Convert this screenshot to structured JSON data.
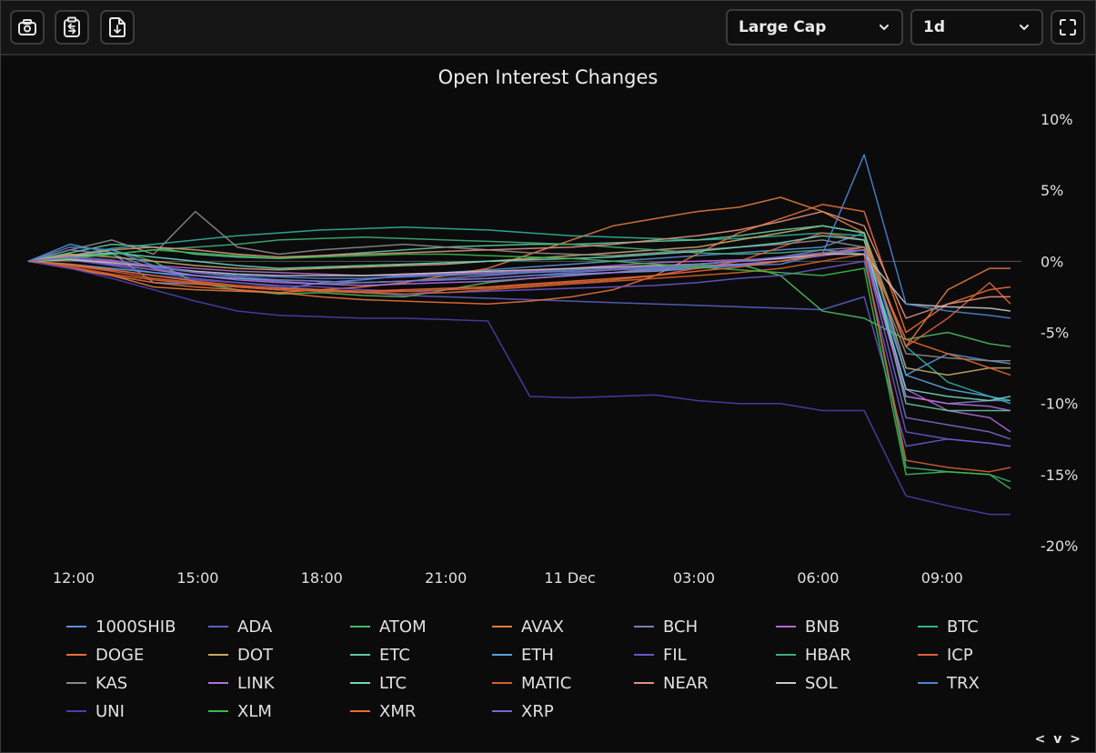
{
  "toolbar": {
    "actions": [
      {
        "name": "camera-icon",
        "label": ""
      },
      {
        "name": "clipboard-icon",
        "label": ""
      },
      {
        "name": "download-icon",
        "label": ""
      }
    ],
    "market_filter": {
      "value": "Large Cap",
      "icon": "chevron-down-icon"
    },
    "timeframe": {
      "value": "1d",
      "icon": "chevron-down-icon"
    },
    "fullscreen_icon": "fullscreen-icon"
  },
  "pager": {
    "label": "< v >"
  },
  "chart_data": {
    "type": "line",
    "title": "Open Interest Changes",
    "x_ticks": [
      "12:00",
      "15:00",
      "18:00",
      "21:00",
      "11 Dec",
      "03:00",
      "06:00",
      "09:00"
    ],
    "y_ticks": [
      "10%",
      "5%",
      "0%",
      "-5%",
      "-10%",
      "-15%",
      "-20%"
    ],
    "ylim": [
      -20,
      10
    ],
    "y_axis_side": "right",
    "x": [
      0,
      1,
      2,
      3,
      4,
      5,
      6,
      7,
      8,
      9,
      10,
      11,
      12,
      13,
      14,
      15,
      16,
      17,
      18,
      19,
      20,
      21,
      22,
      23,
      23.5
    ],
    "legend_position": "bottom",
    "series": [
      {
        "name": "1000SHIB",
        "color": "#5b8fd6",
        "values": [
          0,
          1.2,
          0.6,
          -1.5,
          -1.6,
          -1.8,
          -2.0,
          -1.5,
          -1.3,
          -1.0,
          -0.8,
          -0.6,
          -0.4,
          -0.2,
          0.0,
          0.2,
          0.4,
          0.6,
          0.8,
          1.0,
          2.0,
          -8.0,
          -6.5,
          -7.0,
          -7.2
        ]
      },
      {
        "name": "ADA",
        "color": "#5a5fc4",
        "values": [
          0,
          0.1,
          -0.3,
          -0.8,
          -1.2,
          -1.5,
          -1.8,
          -2.0,
          -2.2,
          -2.4,
          -2.5,
          -2.6,
          -2.7,
          -2.8,
          -2.9,
          -3.0,
          -3.1,
          -3.2,
          -3.3,
          -3.4,
          -2.5,
          -13.0,
          -12.5,
          -12.8,
          -13.0
        ]
      },
      {
        "name": "ATOM",
        "color": "#48b95a",
        "values": [
          0,
          0.3,
          0.8,
          0.0,
          -1.5,
          -2.0,
          -2.3,
          -2.2,
          -2.4,
          -2.5,
          -2.0,
          -1.5,
          -1.2,
          -1.0,
          -0.8,
          -0.5,
          -0.3,
          -0.2,
          -1.0,
          -3.5,
          -4.0,
          -5.5,
          -5.0,
          -5.8,
          -6.0
        ]
      },
      {
        "name": "AVAX",
        "color": "#e07a3c",
        "values": [
          0,
          -0.5,
          -1.0,
          -1.8,
          -2.0,
          -2.1,
          -2.2,
          -2.0,
          -1.8,
          -1.5,
          -1.0,
          -0.5,
          0.5,
          1.5,
          2.5,
          3.0,
          3.5,
          3.8,
          4.5,
          3.5,
          2.0,
          -6.0,
          -2.0,
          -0.5,
          -0.5
        ]
      },
      {
        "name": "BCH",
        "color": "#7a7fb8",
        "values": [
          0,
          0.8,
          0.5,
          -0.5,
          -1.0,
          -1.2,
          -1.4,
          -1.6,
          -1.5,
          -1.4,
          -1.2,
          -1.0,
          -0.8,
          -0.6,
          -0.5,
          -0.4,
          -0.2,
          0.0,
          0.3,
          0.8,
          1.0,
          -9.5,
          -10.0,
          -9.8,
          -9.8
        ]
      },
      {
        "name": "BNB",
        "color": "#b46ad6",
        "values": [
          0,
          0.2,
          0.0,
          -0.3,
          -0.5,
          -0.7,
          -0.8,
          -0.9,
          -1.0,
          -1.0,
          -0.9,
          -0.8,
          -0.7,
          -0.5,
          -0.3,
          -0.1,
          0.0,
          0.1,
          0.2,
          0.5,
          0.8,
          -9.0,
          -10.5,
          -11.0,
          -12.0
        ]
      },
      {
        "name": "BTC",
        "color": "#2fb39a",
        "values": [
          0,
          0.4,
          0.9,
          1.2,
          1.5,
          1.8,
          2.0,
          2.2,
          2.3,
          2.4,
          2.3,
          2.2,
          2.0,
          1.8,
          1.7,
          1.6,
          1.5,
          1.6,
          1.8,
          2.0,
          1.8,
          -6.0,
          -8.5,
          -9.5,
          -10.0
        ]
      },
      {
        "name": "DOGE",
        "color": "#e8703a",
        "values": [
          0,
          -0.5,
          -1.0,
          -1.5,
          -1.8,
          -2.0,
          -2.2,
          -2.5,
          -2.7,
          -2.8,
          -2.9,
          -3.0,
          -2.8,
          -2.5,
          -2.0,
          -1.0,
          0.5,
          2.0,
          3.0,
          4.0,
          3.5,
          -5.0,
          -3.0,
          -2.0,
          -1.8
        ]
      },
      {
        "name": "DOT",
        "color": "#c9a86a",
        "values": [
          0,
          0.5,
          0.3,
          0.0,
          -0.3,
          -0.5,
          -0.6,
          -0.5,
          -0.4,
          -0.3,
          -0.2,
          0.0,
          0.2,
          0.4,
          0.6,
          0.8,
          1.0,
          1.5,
          2.0,
          2.5,
          2.0,
          -7.5,
          -8.0,
          -7.5,
          -7.5
        ]
      },
      {
        "name": "ETC",
        "color": "#5fc9a0",
        "values": [
          0,
          0.6,
          1.2,
          1.0,
          0.5,
          0.3,
          0.2,
          0.4,
          0.6,
          0.8,
          1.0,
          1.1,
          1.2,
          1.2,
          1.3,
          1.4,
          1.5,
          1.8,
          2.2,
          2.5,
          2.0,
          -10.0,
          -10.5,
          -10.5,
          -10.5
        ]
      },
      {
        "name": "ETH",
        "color": "#56a5e0",
        "values": [
          0,
          -0.2,
          -0.5,
          -0.8,
          -1.0,
          -1.2,
          -1.3,
          -1.4,
          -1.5,
          -1.4,
          -1.3,
          -1.2,
          -1.0,
          -0.9,
          -0.8,
          -0.7,
          -0.5,
          -0.3,
          0.0,
          0.5,
          1.0,
          -8.0,
          -9.0,
          -9.5,
          -9.8
        ]
      },
      {
        "name": "FIL",
        "color": "#6a55c8",
        "values": [
          0,
          -0.3,
          -0.6,
          -1.0,
          -1.3,
          -1.5,
          -1.7,
          -1.8,
          -2.0,
          -2.1,
          -2.2,
          -2.1,
          -2.0,
          -1.9,
          -1.8,
          -1.7,
          -1.5,
          -1.2,
          -1.0,
          -0.5,
          0.0,
          -12.0,
          -12.5,
          -12.8,
          -13.0
        ]
      },
      {
        "name": "HBAR",
        "color": "#3fae78",
        "values": [
          0,
          0.2,
          0.5,
          0.8,
          1.0,
          1.2,
          1.5,
          1.6,
          1.7,
          1.6,
          1.5,
          1.4,
          1.3,
          1.2,
          1.0,
          0.8,
          0.6,
          0.5,
          0.6,
          0.8,
          0.5,
          -14.5,
          -14.8,
          -15.0,
          -15.5
        ]
      },
      {
        "name": "ICP",
        "color": "#e0603a",
        "values": [
          0,
          -0.4,
          -0.9,
          -1.3,
          -1.6,
          -1.8,
          -2.0,
          -2.1,
          -2.2,
          -2.1,
          -2.0,
          -1.9,
          -1.7,
          -1.5,
          -1.3,
          -1.0,
          -0.5,
          0.0,
          1.0,
          2.0,
          1.5,
          -6.0,
          -4.0,
          -1.5,
          -3.0
        ]
      },
      {
        "name": "KAS",
        "color": "#8a8a8a",
        "values": [
          0,
          0.8,
          1.5,
          0.5,
          3.5,
          1.0,
          0.5,
          0.8,
          1.0,
          1.2,
          1.0,
          0.8,
          0.6,
          0.5,
          0.4,
          0.6,
          0.8,
          1.0,
          1.2,
          1.5,
          1.0,
          -6.5,
          -6.8,
          -7.0,
          -7.0
        ]
      },
      {
        "name": "LINK",
        "color": "#b070e0",
        "values": [
          0,
          0.2,
          -0.2,
          -0.6,
          -1.0,
          -1.3,
          -1.5,
          -1.6,
          -1.7,
          -1.6,
          -1.5,
          -1.4,
          -1.2,
          -1.0,
          -0.8,
          -0.6,
          -0.4,
          -0.2,
          0.0,
          0.4,
          0.8,
          -9.5,
          -10.0,
          -10.2,
          -10.5
        ]
      },
      {
        "name": "LTC",
        "color": "#6fd4c0",
        "values": [
          0,
          0.3,
          0.6,
          0.3,
          0.0,
          -0.3,
          -0.5,
          -0.4,
          -0.3,
          -0.2,
          -0.1,
          0.0,
          0.1,
          0.2,
          0.3,
          0.5,
          0.7,
          1.0,
          1.3,
          1.8,
          1.5,
          -9.0,
          -9.5,
          -9.8,
          -9.5
        ]
      },
      {
        "name": "MATIC",
        "color": "#d66030",
        "values": [
          0,
          -0.3,
          -0.7,
          -1.2,
          -1.5,
          -1.8,
          -2.0,
          -2.1,
          -2.2,
          -2.3,
          -2.2,
          -2.0,
          -1.8,
          -1.6,
          -1.4,
          -1.2,
          -1.0,
          -0.8,
          -0.5,
          0.0,
          0.5,
          -14.0,
          -14.5,
          -14.8,
          -14.5
        ]
      },
      {
        "name": "NEAR",
        "color": "#e09080",
        "values": [
          0,
          0.4,
          0.8,
          1.0,
          0.8,
          0.5,
          0.3,
          0.4,
          0.5,
          0.6,
          0.7,
          0.8,
          0.9,
          1.0,
          1.2,
          1.5,
          1.8,
          2.2,
          2.8,
          3.5,
          2.5,
          -4.0,
          -3.0,
          -2.5,
          -2.5
        ]
      },
      {
        "name": "SOL",
        "color": "#c8c8c8",
        "values": [
          0,
          0.1,
          -0.1,
          -0.4,
          -0.7,
          -0.9,
          -1.0,
          -1.0,
          -1.0,
          -0.9,
          -0.8,
          -0.7,
          -0.6,
          -0.5,
          -0.4,
          -0.3,
          -0.2,
          0.0,
          0.2,
          0.5,
          0.5,
          -3.0,
          -3.2,
          -3.3,
          -3.5
        ]
      },
      {
        "name": "TRX",
        "color": "#4f86d0",
        "values": [
          0,
          1.0,
          0.8,
          -0.3,
          -0.8,
          -1.0,
          -1.1,
          -1.2,
          -1.2,
          -1.1,
          -1.0,
          -0.9,
          -0.8,
          -0.7,
          -0.6,
          -0.5,
          -0.4,
          -0.3,
          -0.2,
          0.5,
          7.5,
          -3.0,
          -3.5,
          -3.8,
          -4.0
        ]
      },
      {
        "name": "UNI",
        "color": "#4a3fb0",
        "values": [
          0,
          -0.5,
          -1.2,
          -2.0,
          -2.8,
          -3.5,
          -3.8,
          -3.9,
          -4.0,
          -4.0,
          -4.1,
          -4.2,
          -9.5,
          -9.6,
          -9.5,
          -9.4,
          -9.8,
          -10.0,
          -10.0,
          -10.5,
          -10.5,
          -16.5,
          -17.2,
          -17.8,
          -17.8
        ]
      },
      {
        "name": "XLM",
        "color": "#3cb84a",
        "values": [
          0,
          0.2,
          0.5,
          0.8,
          0.6,
          0.4,
          0.2,
          0.3,
          0.4,
          0.5,
          0.5,
          0.4,
          0.3,
          0.2,
          0.0,
          -0.2,
          -0.4,
          -0.6,
          -0.8,
          -1.0,
          -0.5,
          -15.0,
          -14.8,
          -15.0,
          -16.0
        ]
      },
      {
        "name": "XMR",
        "color": "#e86a30",
        "values": [
          0,
          -0.2,
          -0.6,
          -1.0,
          -1.4,
          -1.7,
          -1.9,
          -2.0,
          -2.1,
          -2.0,
          -1.9,
          -1.8,
          -1.6,
          -1.4,
          -1.2,
          -1.0,
          -0.7,
          -0.4,
          0.0,
          0.5,
          1.0,
          -5.5,
          -6.5,
          -7.5,
          -8.0
        ]
      },
      {
        "name": "XRP",
        "color": "#7a6ac8",
        "values": [
          0,
          0.3,
          0.1,
          -0.4,
          -0.8,
          -1.1,
          -1.3,
          -1.4,
          -1.5,
          -1.4,
          -1.3,
          -1.2,
          -1.0,
          -0.8,
          -0.6,
          -0.4,
          -0.2,
          0.0,
          0.3,
          0.6,
          0.8,
          -11.0,
          -11.5,
          -12.0,
          -12.5
        ]
      }
    ]
  }
}
